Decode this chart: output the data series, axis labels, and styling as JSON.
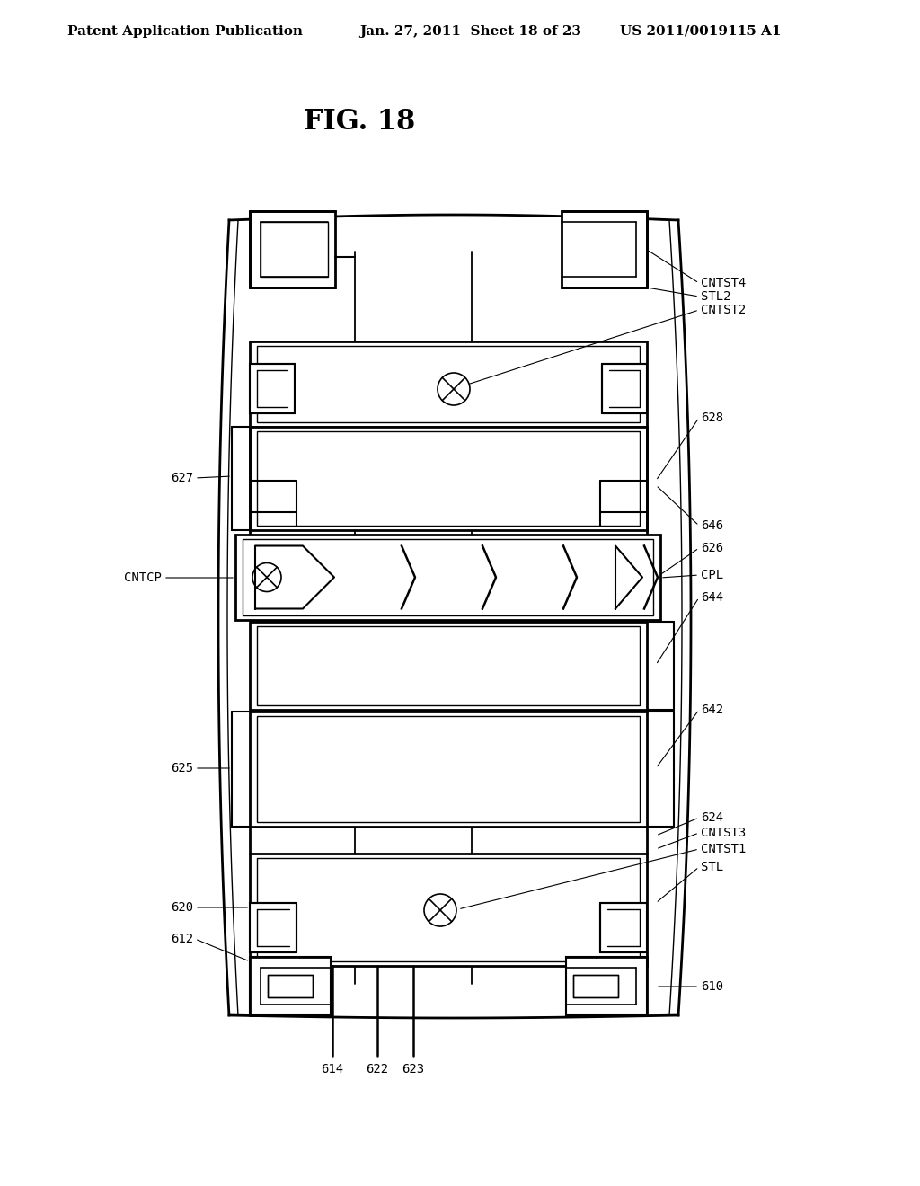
{
  "title": "FIG. 18",
  "header_left": "Patent Application Publication",
  "header_mid": "Jan. 27, 2011  Sheet 18 of 23",
  "header_right": "US 2011/0019115 A1",
  "bg_color": "#ffffff",
  "line_color": "#000000"
}
